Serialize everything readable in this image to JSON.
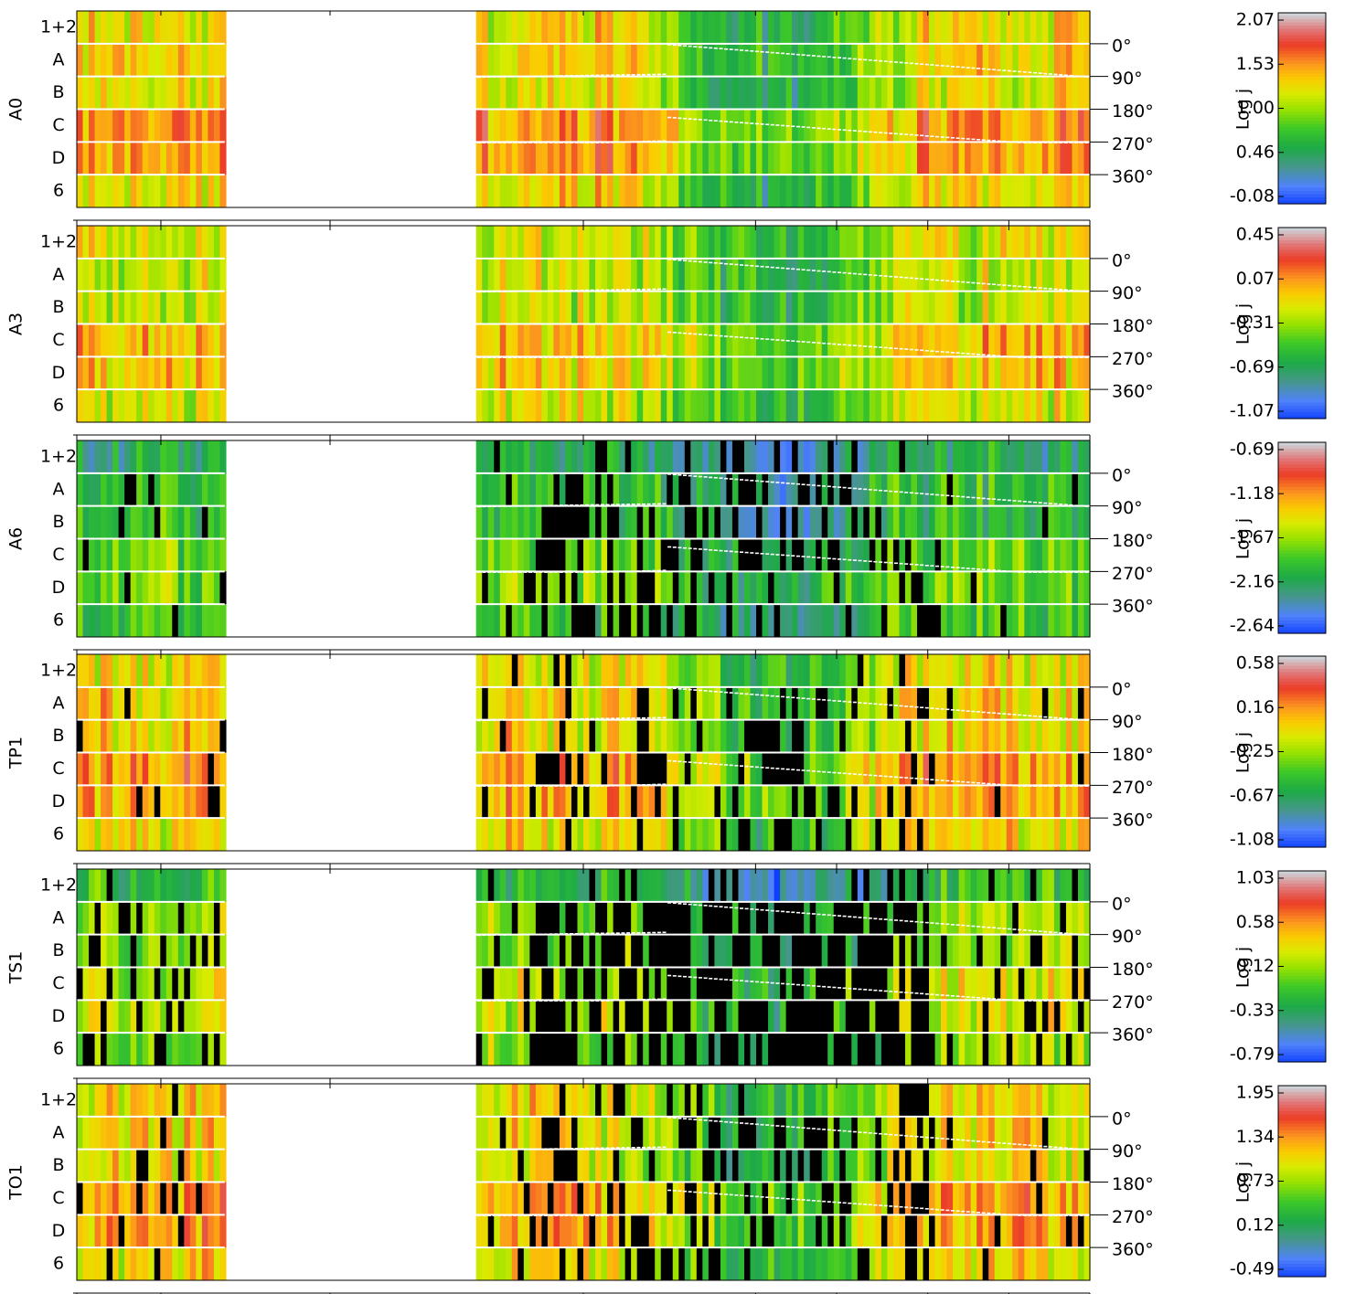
{
  "chart_data": {
    "type": "heatmap",
    "description_note": "",
    "row_labels": [
      "1+2",
      "A",
      "B",
      "C",
      "D",
      "6"
    ],
    "right_angle_ticks": [
      "0°",
      "90°",
      "180°",
      "270°",
      "360°"
    ],
    "colorbar_label": "Log j",
    "gap": {
      "from": 0.146,
      "to": 0.393
    },
    "panels": [
      {
        "name": "A0",
        "colorbar_ticks": [
          "2.07",
          "1.53",
          "1.00",
          "0.46",
          "-0.08"
        ],
        "level": [
          0.62,
          0.64,
          0.6,
          0.74,
          0.72,
          0.62
        ],
        "late_drop": 0.3,
        "black_frac": 0.0
      },
      {
        "name": "A3",
        "colorbar_ticks": [
          "0.45",
          "0.07",
          "-0.31",
          "-0.69",
          "-1.07"
        ],
        "level": [
          0.58,
          0.56,
          0.56,
          0.68,
          0.66,
          0.58
        ],
        "late_drop": 0.25,
        "black_frac": 0.0
      },
      {
        "name": "A6",
        "colorbar_ticks": [
          "-0.69",
          "-1.18",
          "-1.67",
          "-2.16",
          "-2.64"
        ],
        "level": [
          0.3,
          0.36,
          0.36,
          0.44,
          0.46,
          0.4
        ],
        "late_drop": 0.15,
        "black_frac": 0.3
      },
      {
        "name": "TP1",
        "colorbar_ticks": [
          "0.58",
          "0.16",
          "-0.25",
          "-0.67",
          "-1.08"
        ],
        "level": [
          0.62,
          0.66,
          0.64,
          0.74,
          0.72,
          0.64
        ],
        "late_drop": 0.3,
        "black_frac": 0.22
      },
      {
        "name": "TS1",
        "colorbar_ticks": [
          "1.03",
          "0.58",
          "0.12",
          "-0.33",
          "-0.79"
        ],
        "level": [
          0.36,
          0.5,
          0.48,
          0.56,
          0.56,
          0.48
        ],
        "late_drop": 0.25,
        "black_frac": 0.65
      },
      {
        "name": "TO1",
        "colorbar_ticks": [
          "1.95",
          "1.34",
          "0.73",
          "0.12",
          "-0.49"
        ],
        "level": [
          0.62,
          0.62,
          0.6,
          0.72,
          0.7,
          0.62
        ],
        "late_drop": 0.3,
        "black_frac": 0.3
      }
    ]
  }
}
